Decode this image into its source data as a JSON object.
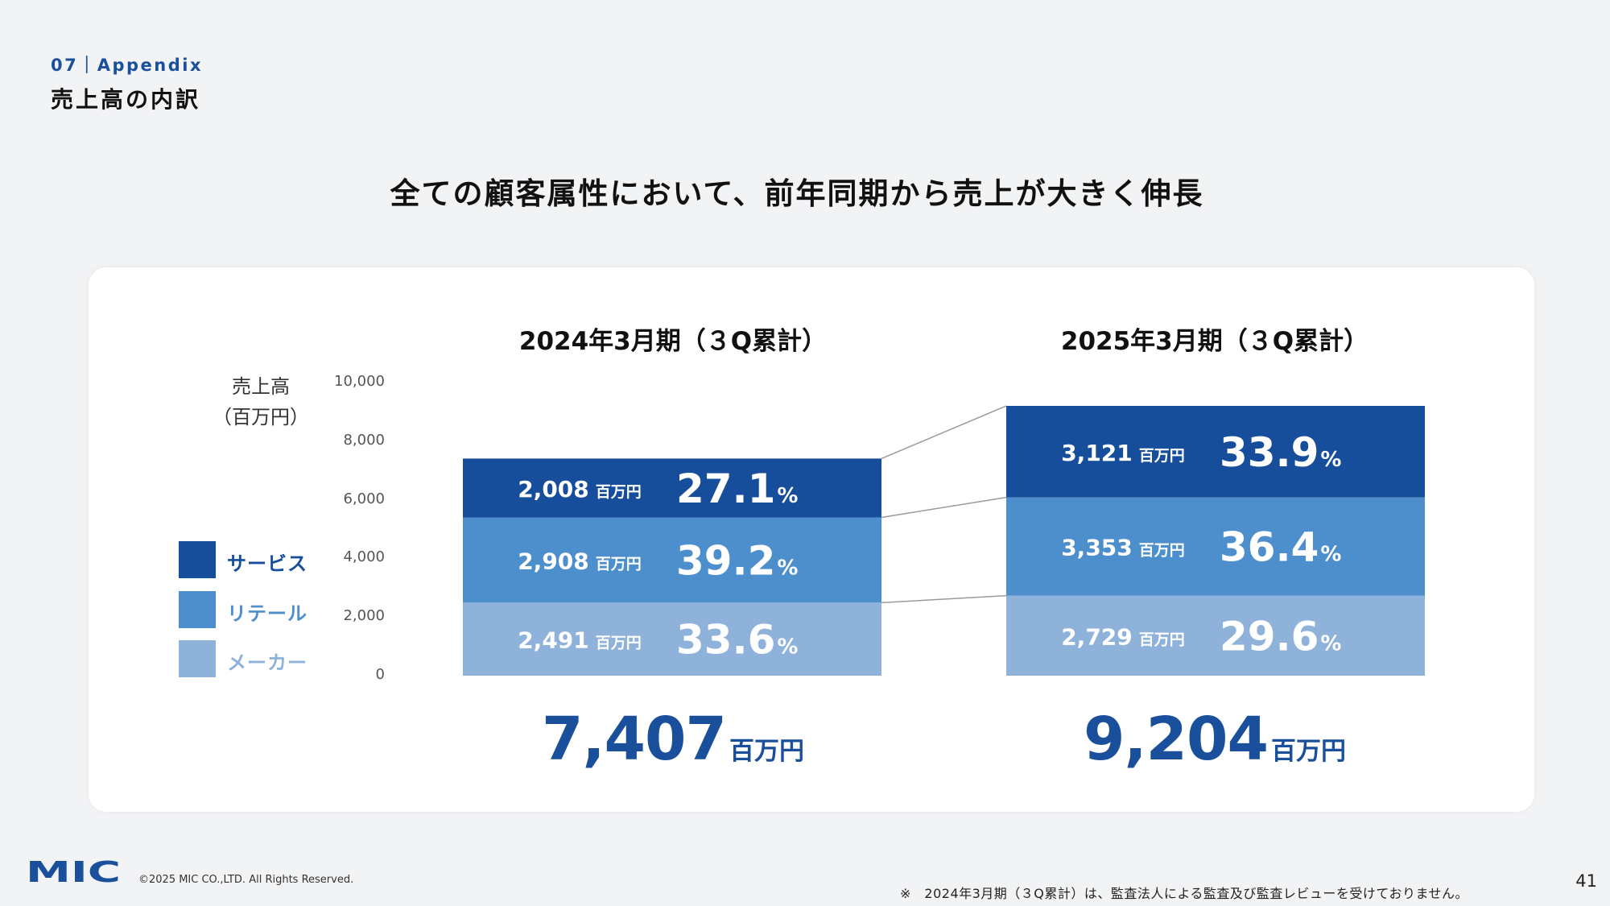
{
  "header": {
    "section_tag": "07｜Appendix",
    "section_title": "売上高の内訳",
    "headline": "全ての顧客属性において、前年同期から売上が大きく伸長"
  },
  "chart_data": {
    "type": "bar",
    "stacked": true,
    "categories": [
      "2024年3月期（３Q累計）",
      "2025年3月期（３Q累計）"
    ],
    "ylabel": "売上高\n（百万円）",
    "ylim": [
      0,
      10000
    ],
    "yticks": [
      "10,000",
      "8,000",
      "6,000",
      "4,000",
      "2,000",
      "0"
    ],
    "series": [
      {
        "name": "メーカー",
        "color": "#8fb2da",
        "values": [
          2491,
          2729
        ],
        "value_labels": [
          "2,491",
          "2,729"
        ],
        "share_labels": [
          "33.6",
          "29.6"
        ]
      },
      {
        "name": "リテール",
        "color": "#4d8fcd",
        "values": [
          2908,
          3353
        ],
        "value_labels": [
          "2,908",
          "3,353"
        ],
        "share_labels": [
          "39.2",
          "36.4"
        ]
      },
      {
        "name": "サービス",
        "color": "#174e9c",
        "values": [
          2008,
          3121
        ],
        "value_labels": [
          "2,008",
          "3,121"
        ],
        "share_labels": [
          "27.1",
          "33.9"
        ]
      }
    ],
    "legend_order": [
      "サービス",
      "リテール",
      "メーカー"
    ],
    "totals": [
      {
        "value": "7,407",
        "unit": "百万円"
      },
      {
        "value": "9,204",
        "unit": "百万円"
      }
    ],
    "value_unit": "百万円",
    "share_unit": "%",
    "legend_position": "left",
    "connector_lines": true,
    "grid": false
  },
  "footer": {
    "logo_text": "MIC",
    "copyright": "©2025 MIC CO.,LTD. All Rights Reserved.",
    "footnote": "※　2024年3月期（３Q累計）は、監査法人による監査及び監査レビューを受けておりません。",
    "page_number": "41"
  },
  "colors": {
    "brand_blue": "#1a4f9c",
    "service": "#174e9c",
    "retail": "#4d8fcd",
    "maker": "#8fb2da"
  }
}
